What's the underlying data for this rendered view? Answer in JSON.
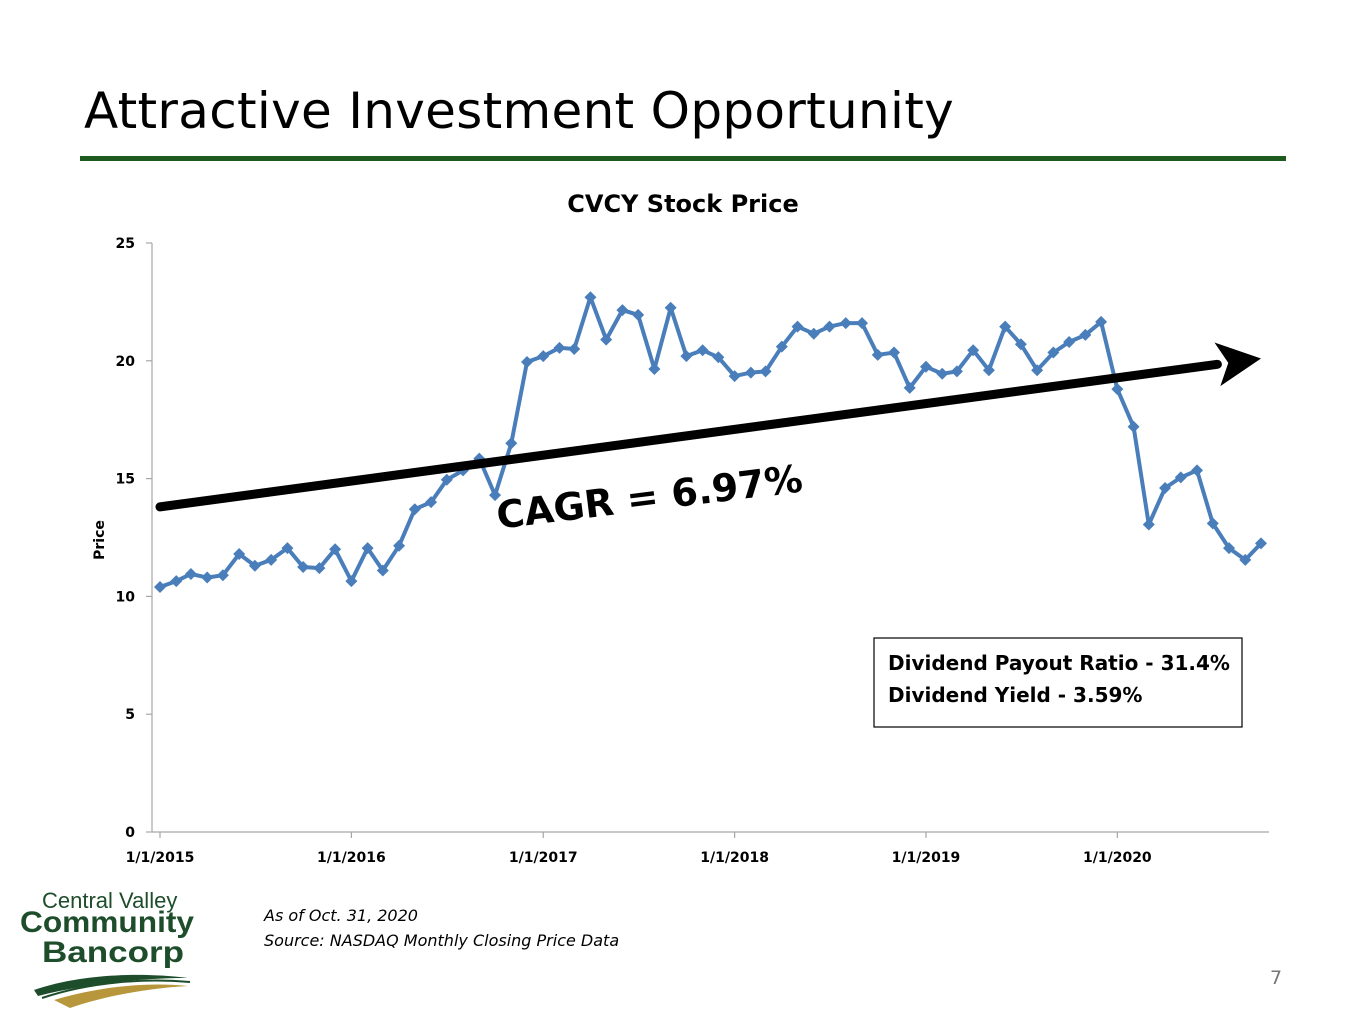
{
  "slide": {
    "title": "Attractive Investment Opportunity",
    "page_number": "7",
    "title_rule_color": "#1e5a1e"
  },
  "footnotes": {
    "as_of": "As of  Oct. 31, 2020",
    "source": "Source: NASDAQ Monthly Closing Price Data"
  },
  "logo": {
    "line1": "Central Valley",
    "line2": "Community",
    "line3": "Bancorp",
    "green": "#1e4d2b",
    "gold": "#b8963c"
  },
  "chart_data": {
    "type": "line",
    "title": "CVCY Stock Price",
    "xlabel": "",
    "ylabel": "Price",
    "ylim": [
      0,
      25
    ],
    "yticks": [
      0,
      5,
      10,
      15,
      20,
      25
    ],
    "xlim": [
      "1/1/2015",
      "10/1/2020"
    ],
    "xticks": [
      "1/1/2015",
      "1/1/2016",
      "1/1/2017",
      "1/1/2018",
      "1/1/2019",
      "1/1/2020"
    ],
    "grid": false,
    "legend": "none",
    "series": [
      {
        "color": "#4a7ebb",
        "marker": "diamond",
        "x": [
          "1/1/2015",
          "2/1/2015",
          "3/1/2015",
          "4/1/2015",
          "5/1/2015",
          "6/1/2015",
          "7/1/2015",
          "8/1/2015",
          "9/1/2015",
          "10/1/2015",
          "11/1/2015",
          "12/1/2015",
          "1/1/2016",
          "2/1/2016",
          "3/1/2016",
          "4/1/2016",
          "5/1/2016",
          "6/1/2016",
          "7/1/2016",
          "8/1/2016",
          "9/1/2016",
          "10/1/2016",
          "11/1/2016",
          "12/1/2016",
          "1/1/2017",
          "2/1/2017",
          "3/1/2017",
          "4/1/2017",
          "5/1/2017",
          "6/1/2017",
          "7/1/2017",
          "8/1/2017",
          "9/1/2017",
          "10/1/2017",
          "11/1/2017",
          "12/1/2017",
          "1/1/2018",
          "2/1/2018",
          "3/1/2018",
          "4/1/2018",
          "5/1/2018",
          "6/1/2018",
          "7/1/2018",
          "8/1/2018",
          "9/1/2018",
          "10/1/2018",
          "11/1/2018",
          "12/1/2018",
          "1/1/2019",
          "2/1/2019",
          "3/1/2019",
          "4/1/2019",
          "5/1/2019",
          "6/1/2019",
          "7/1/2019",
          "8/1/2019",
          "9/1/2019",
          "10/1/2019",
          "11/1/2019",
          "12/1/2019",
          "1/1/2020",
          "2/1/2020",
          "3/1/2020",
          "4/1/2020",
          "5/1/2020",
          "6/1/2020",
          "7/1/2020",
          "8/1/2020",
          "9/1/2020",
          "10/1/2020"
        ],
        "values": [
          10.4,
          10.65,
          10.95,
          10.8,
          10.9,
          11.8,
          11.3,
          11.55,
          12.05,
          11.25,
          11.2,
          12.0,
          10.65,
          12.05,
          11.1,
          12.15,
          13.7,
          14.0,
          14.95,
          15.35,
          15.85,
          14.3,
          16.5,
          19.95,
          20.2,
          20.55,
          20.5,
          22.7,
          20.9,
          22.15,
          21.95,
          19.65,
          22.25,
          20.2,
          20.45,
          20.15,
          19.35,
          19.5,
          19.55,
          20.6,
          21.45,
          21.15,
          21.45,
          21.6,
          21.6,
          20.25,
          20.35,
          18.85,
          19.75,
          19.45,
          19.55,
          20.45,
          19.6,
          21.45,
          20.7,
          19.6,
          20.35,
          20.8,
          21.1,
          21.65,
          18.8,
          17.2,
          13.05,
          14.6,
          15.05,
          15.35,
          13.1,
          12.05,
          11.55,
          12.25
        ]
      }
    ],
    "trend_arrow": {
      "from": {
        "x": "1/1/2015",
        "y": 13.8
      },
      "to": {
        "x": "10/1/2020",
        "y": 20.1
      },
      "color": "#000000"
    },
    "annotations": {
      "cagr": "CAGR = 6.97%",
      "dividend_payout": "Dividend Payout Ratio - 31.4%",
      "dividend_yield": "Dividend Yield - 3.59%"
    },
    "axis_color": "#a6a6a6"
  }
}
